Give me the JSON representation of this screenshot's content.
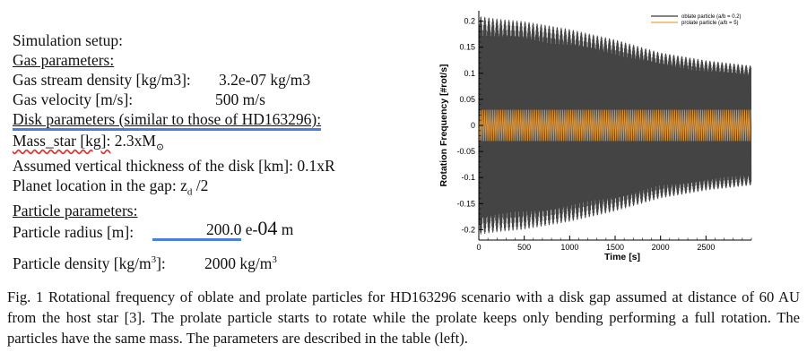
{
  "setup": {
    "heading": "Simulation setup:",
    "gas_heading": "Gas parameters:",
    "gas_density_label": "Gas stream density [kg/m3]:",
    "gas_density_value": "3.2e-07 kg/m3",
    "gas_velocity_label": "Gas velocity [m/s]:",
    "gas_velocity_value": "500 m/s",
    "disk_heading": "Disk parameters (similar to those of HD163296):",
    "mass_star_label": "Mass_star [kg]:",
    "mass_star_value": "2.3xM",
    "mass_star_sub": "⊙",
    "thickness_label": "Assumed vertical thickness of the disk [km]: 0.1xR",
    "planet_label": "Planet location in the gap: z",
    "planet_sub": "d",
    "planet_suffix": " /2",
    "particle_heading": "Particle parameters:",
    "radius_label": "Particle radius [m]:",
    "radius_value_a": "200.0",
    "radius_value_b": " e-",
    "radius_value_c": "04",
    "radius_value_d": " m",
    "density_label_a": "Particle density [kg/m",
    "density_label_sup": "3",
    "density_label_b": "]:",
    "density_value_a": "2000 kg/m",
    "density_value_sup": "3"
  },
  "caption": "Fig. 1 Rotational frequency of oblate and prolate particles for HD163296 scenario with a disk gap assumed at distance of 60 AU from the host star [3]. The prolate particle starts to rotate while the prolate keeps only bending performing a full rotation. The particles have the same mass. The parameters are described in the table (left).",
  "colors": {
    "oblate": "#3a3a3a",
    "prolate": "#f0a13c",
    "underline": "#4a7fe0"
  },
  "chart_data": {
    "type": "line",
    "xlabel": "Time [s]",
    "ylabel": "Rotation Frequency [#rot/s]",
    "xlim": [
      0,
      3000
    ],
    "ylim": [
      -0.22,
      0.22
    ],
    "xticks": [
      0,
      500,
      1000,
      1500,
      2000,
      2500
    ],
    "yticks": [
      -0.2,
      -0.15,
      -0.1,
      -0.05,
      0,
      0.05,
      0.1,
      0.15,
      0.2
    ],
    "ytick_labels": [
      "-0.2",
      "-0.15",
      "-0.1",
      "-0.05",
      "0",
      "0.05",
      "0.1",
      "0.15",
      "0.2"
    ],
    "legend_position": "top-right",
    "series": [
      {
        "name": "oblate particle (a/b = 0.2)",
        "style": "oscillation",
        "envelope_t": [
          0,
          200,
          500,
          1000,
          1500,
          2000,
          2500,
          3000
        ],
        "envelope_amp": [
          0.21,
          0.205,
          0.2,
          0.185,
          0.165,
          0.14,
          0.125,
          0.115
        ]
      },
      {
        "name": "prolate particle (a/b = 5)",
        "style": "oscillation",
        "envelope_t": [
          0,
          3000
        ],
        "envelope_amp": [
          0.03,
          0.03
        ]
      }
    ]
  }
}
